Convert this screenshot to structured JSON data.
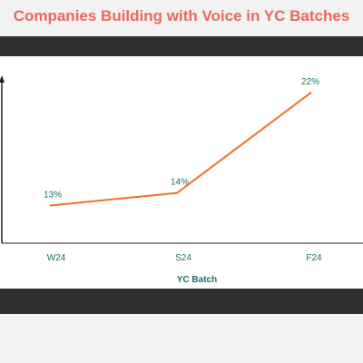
{
  "colors": {
    "title": "#e8695a",
    "line": "#f07023",
    "text": "#1f6e68",
    "band": "#2f2f31",
    "panel": "#ffffff",
    "background": "#f2f2f2"
  },
  "chart_data": {
    "type": "line",
    "title": "Companies Building with Voice in YC Batches",
    "xlabel": "YC Batch",
    "ylabel": "",
    "categories": [
      "W24",
      "S24",
      "F24"
    ],
    "series": [
      {
        "values": [
          13,
          14,
          22
        ],
        "labels": [
          "13%",
          "14%",
          "22%"
        ]
      }
    ],
    "ylim": [
      10,
      23
    ],
    "grid": false,
    "legend": "none"
  }
}
